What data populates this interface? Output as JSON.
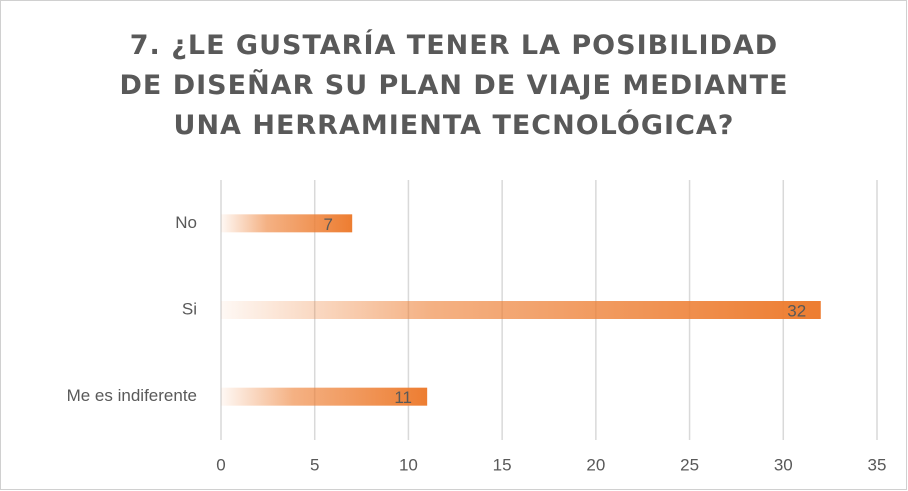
{
  "chart_data": {
    "type": "bar",
    "orientation": "horizontal",
    "title": "7. ¿LE GUSTARÍA TENER LA POSIBILIDAD DE DISEÑAR SU PLAN DE VIAJE MEDIANTE UNA HERRAMIENTA TECNOLÓGICA?",
    "categories": [
      "No",
      "Si",
      "Me es indiferente"
    ],
    "values": [
      7,
      32,
      11
    ],
    "color": "#ED7D31",
    "xlim": [
      0,
      35
    ],
    "xticks": [
      0,
      5,
      10,
      15,
      20,
      25,
      30,
      35
    ],
    "grid": true
  }
}
